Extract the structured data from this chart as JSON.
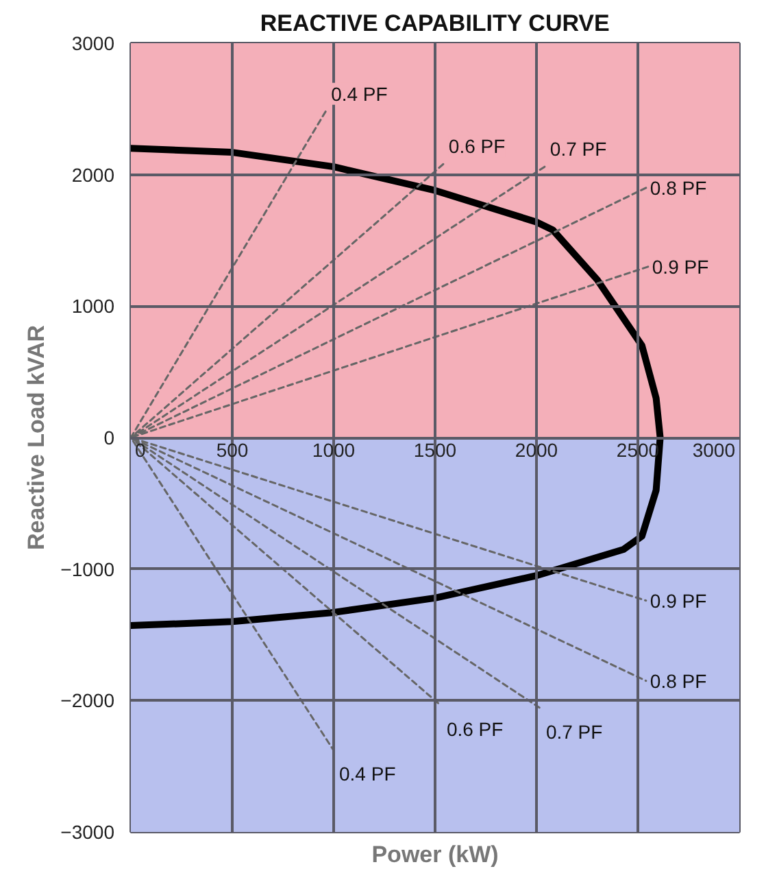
{
  "chart_data": {
    "type": "line",
    "title": "REACTIVE CAPABILITY CURVE",
    "xlabel": "Power (kW)",
    "ylabel": "Reactive Load kVAR",
    "xlim": [
      0,
      3000
    ],
    "ylim": [
      -3000,
      3000
    ],
    "xticks": [
      0,
      500,
      1000,
      1500,
      2000,
      2500,
      3000
    ],
    "yticks": [
      -3000,
      -2000,
      -1000,
      0,
      1000,
      2000,
      3000
    ],
    "grid": true,
    "bands": [
      {
        "axis": "y",
        "from": 0,
        "to": 3000,
        "color": "#f4afb9"
      },
      {
        "axis": "y",
        "from": -3000,
        "to": 0,
        "color": "#b8c0ee"
      }
    ],
    "series": [
      {
        "color": "#000000",
        "line_style": "solid",
        "x": [
          0,
          500,
          1000,
          1500,
          2000,
          2080,
          2300,
          2520,
          2590,
          2610,
          2590,
          2520,
          2430,
          2000,
          1500,
          1000,
          500,
          0
        ],
        "values": [
          2200,
          2170,
          2060,
          1880,
          1640,
          1580,
          1200,
          700,
          300,
          0,
          -400,
          -750,
          -850,
          -1050,
          -1220,
          -1330,
          -1400,
          -1430
        ]
      },
      {
        "name": "0.4 PF",
        "color": "#666666",
        "line_style": "dashed",
        "x": [
          960,
          0,
          1000
        ],
        "values": [
          2480,
          0,
          -2380
        ]
      },
      {
        "name": "0.6 PF",
        "color": "#666666",
        "line_style": "dashed",
        "x": [
          1540,
          0,
          1530
        ],
        "values": [
          2080,
          0,
          -2040
        ]
      },
      {
        "name": "0.7 PF",
        "color": "#666666",
        "line_style": "dashed",
        "x": [
          2040,
          0,
          2020
        ],
        "values": [
          2060,
          0,
          -2060
        ]
      },
      {
        "name": "0.8 PF",
        "color": "#666666",
        "line_style": "dashed",
        "x": [
          2540,
          0,
          2540
        ],
        "values": [
          1900,
          0,
          -1850
        ]
      },
      {
        "name": "0.9 PF",
        "color": "#666666",
        "line_style": "dashed",
        "x": [
          2550,
          0,
          2540
        ],
        "values": [
          1300,
          0,
          -1240
        ]
      }
    ]
  }
}
